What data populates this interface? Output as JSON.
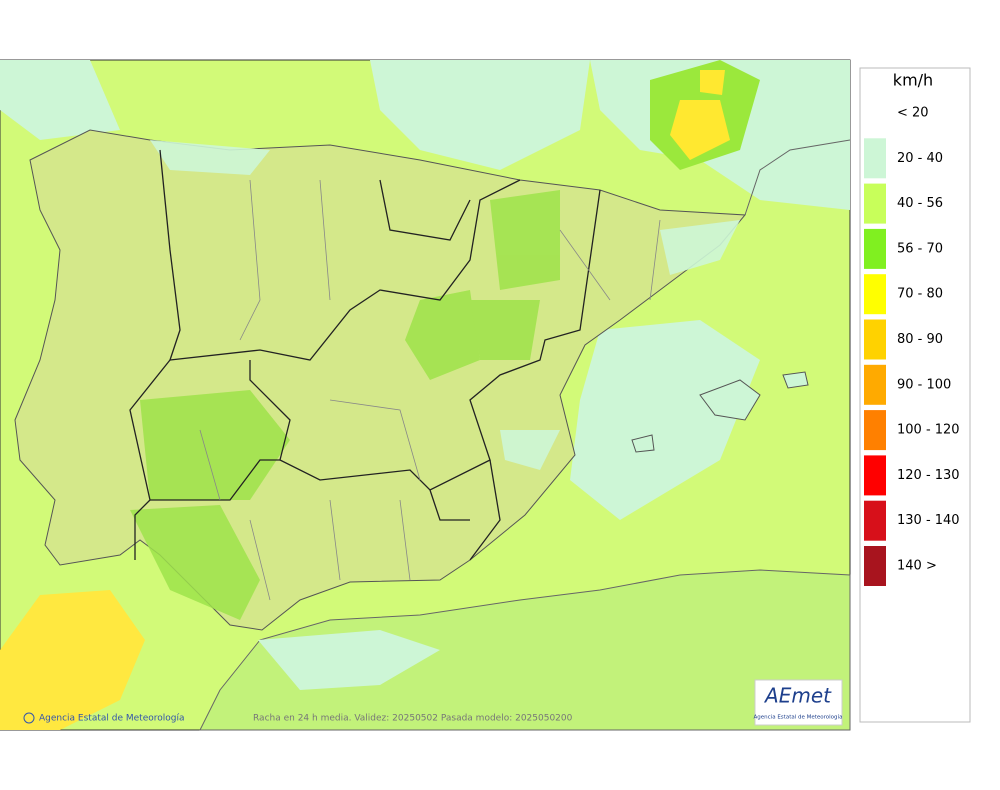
{
  "map": {
    "credit": "Agencia Estatal de Meteorología",
    "caption": "Racha en 24 h media. Validez: 20250502 Pasada modelo: 2025050200"
  },
  "logo": {
    "text": "AEmet",
    "subtitle": "Agencia Estatal de Meteorología"
  },
  "legend": {
    "title": "km/h",
    "items": [
      {
        "label": "< 20"
      },
      {
        "label": "20 - 40",
        "color": "#cdf6d6"
      },
      {
        "label": "40 - 56",
        "color": "#c8ff5a"
      },
      {
        "label": "56 - 70",
        "color": "#80f020"
      },
      {
        "label": "70 - 80",
        "color": "#ffff00"
      },
      {
        "label": "80 - 90",
        "color": "#ffd200"
      },
      {
        "label": "90 - 100",
        "color": "#ffaa00"
      },
      {
        "label": "100 - 120",
        "color": "#ff8000"
      },
      {
        "label": "120 - 130",
        "color": "#ff0000"
      },
      {
        "label": "130 - 140",
        "color": "#d7101a"
      },
      {
        "label": "140 >",
        "color": "#a8141e"
      }
    ]
  }
}
